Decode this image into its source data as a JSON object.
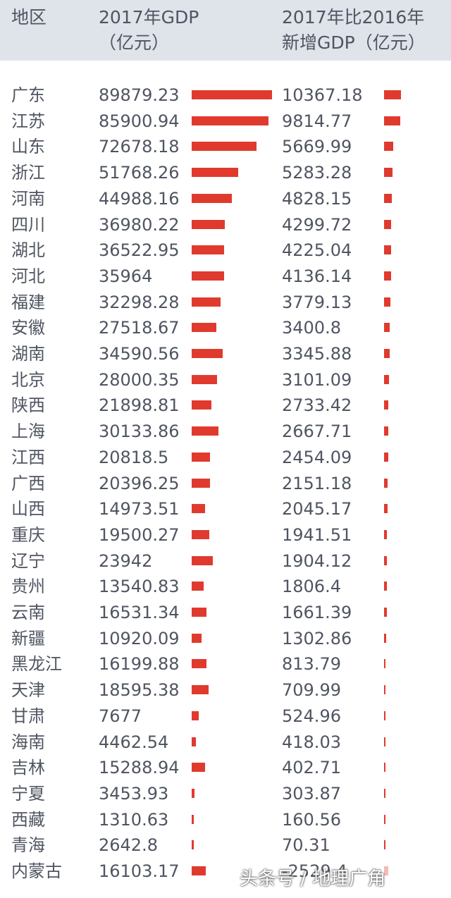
{
  "header": {
    "col_region": "地区",
    "col_gdp_line1": "2017年GDP",
    "col_gdp_line2": "（亿元）",
    "col_increase_line1": "2017年比2016年",
    "col_increase_line2": "新增GDP（亿元）"
  },
  "colors": {
    "bar": "#e03a2f",
    "header_bg": "#dfe3ea"
  },
  "chart_data": {
    "type": "table",
    "columns": [
      "地区",
      "2017年GDP（亿元）",
      "2017年比2016年新增GDP（亿元）"
    ],
    "rows": [
      {
        "region": "广东",
        "gdp": "89879.23",
        "increase": "10367.18"
      },
      {
        "region": "江苏",
        "gdp": "85900.94",
        "increase": "9814.77"
      },
      {
        "region": "山东",
        "gdp": "72678.18",
        "increase": "5669.99"
      },
      {
        "region": "浙江",
        "gdp": "51768.26",
        "increase": "5283.28"
      },
      {
        "region": "河南",
        "gdp": "44988.16",
        "increase": "4828.15"
      },
      {
        "region": "四川",
        "gdp": "36980.22",
        "increase": "4299.72"
      },
      {
        "region": "湖北",
        "gdp": "36522.95",
        "increase": "4225.04"
      },
      {
        "region": "河北",
        "gdp": "35964",
        "increase": "4136.14"
      },
      {
        "region": "福建",
        "gdp": "32298.28",
        "increase": "3779.13"
      },
      {
        "region": "安徽",
        "gdp": "27518.67",
        "increase": "3400.8"
      },
      {
        "region": "湖南",
        "gdp": "34590.56",
        "increase": "3345.88"
      },
      {
        "region": "北京",
        "gdp": "28000.35",
        "increase": "3101.09"
      },
      {
        "region": "陕西",
        "gdp": "21898.81",
        "increase": "2733.42"
      },
      {
        "region": "上海",
        "gdp": "30133.86",
        "increase": "2667.71"
      },
      {
        "region": "江西",
        "gdp": "20818.5",
        "increase": "2454.09"
      },
      {
        "region": "广西",
        "gdp": "20396.25",
        "increase": "2151.18"
      },
      {
        "region": "山西",
        "gdp": "14973.51",
        "increase": "2045.17"
      },
      {
        "region": "重庆",
        "gdp": "19500.27",
        "increase": "1941.51"
      },
      {
        "region": "辽宁",
        "gdp": "23942",
        "increase": "1904.12"
      },
      {
        "region": "贵州",
        "gdp": "13540.83",
        "increase": "1806.4"
      },
      {
        "region": "云南",
        "gdp": "16531.34",
        "increase": "1661.39"
      },
      {
        "region": "新疆",
        "gdp": "10920.09",
        "increase": "1302.86"
      },
      {
        "region": "黑龙江",
        "gdp": "16199.88",
        "increase": "813.79"
      },
      {
        "region": "天津",
        "gdp": "18595.38",
        "increase": "709.99"
      },
      {
        "region": "甘肃",
        "gdp": "7677",
        "increase": "524.96"
      },
      {
        "region": "海南",
        "gdp": "4462.54",
        "increase": "418.03"
      },
      {
        "region": "吉林",
        "gdp": "15288.94",
        "increase": "402.71"
      },
      {
        "region": "宁夏",
        "gdp": "3453.93",
        "increase": "303.87"
      },
      {
        "region": "西藏",
        "gdp": "1310.63",
        "increase": "160.56"
      },
      {
        "region": "青海",
        "gdp": "2642.8",
        "increase": "70.31"
      },
      {
        "region": "内蒙古",
        "gdp": "16103.17",
        "increase": "-2529.4"
      }
    ]
  },
  "watermark": "头条号 / 地理广角"
}
